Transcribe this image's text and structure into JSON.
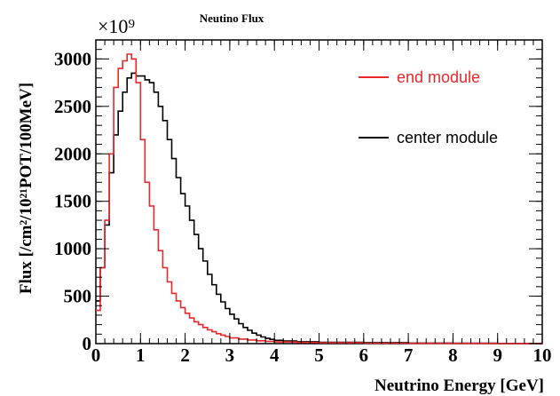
{
  "chart_data": {
    "type": "line",
    "title": "Neutino Flux",
    "xlabel": "Neutrino Energy [GeV]",
    "ylabel": "Flux [/cm²/10²¹POT/100MeV]",
    "y_scale_label": "×10⁹",
    "xlim": [
      0,
      10
    ],
    "ylim": [
      0,
      3200
    ],
    "x_ticks": [
      0,
      1,
      2,
      3,
      4,
      5,
      6,
      7,
      8,
      9,
      10
    ],
    "y_ticks": [
      0,
      500,
      1000,
      1500,
      2000,
      2500,
      3000
    ],
    "bin_width": 0.1,
    "grid": false,
    "legend": "top-right",
    "series": [
      {
        "name": "end module",
        "color": "#e8282b",
        "bin_edges": [
          0.0,
          0.1,
          0.2,
          0.3,
          0.4,
          0.5,
          0.6,
          0.7,
          0.8,
          0.9,
          1.0,
          1.1,
          1.2,
          1.3,
          1.4,
          1.5,
          1.6,
          1.7,
          1.8,
          1.9,
          2.0,
          2.1,
          2.2,
          2.3,
          2.4,
          2.5,
          2.6,
          2.7,
          2.8,
          2.9,
          3.0,
          3.2,
          3.4,
          3.6,
          3.8,
          4.0,
          4.5,
          5.0,
          6.0,
          7.0,
          8.0,
          9.0,
          10.0
        ],
        "values": [
          350,
          800,
          1300,
          2000,
          2700,
          2900,
          2980,
          3050,
          3000,
          2750,
          2150,
          1700,
          1450,
          1200,
          980,
          800,
          650,
          530,
          450,
          380,
          320,
          270,
          230,
          200,
          170,
          145,
          125,
          105,
          90,
          75,
          60,
          48,
          38,
          30,
          24,
          18,
          12,
          8,
          5,
          3,
          2,
          1
        ]
      },
      {
        "name": "center module",
        "color": "#000000",
        "bin_edges": [
          0.0,
          0.1,
          0.2,
          0.3,
          0.4,
          0.5,
          0.6,
          0.7,
          0.8,
          0.9,
          1.0,
          1.1,
          1.2,
          1.3,
          1.4,
          1.5,
          1.6,
          1.7,
          1.8,
          1.9,
          2.0,
          2.1,
          2.2,
          2.3,
          2.4,
          2.5,
          2.6,
          2.7,
          2.8,
          2.9,
          3.0,
          3.1,
          3.2,
          3.3,
          3.4,
          3.5,
          3.6,
          3.7,
          3.8,
          3.9,
          4.0,
          4.2,
          4.5,
          5.0,
          6.0,
          7.0,
          8.0,
          9.0,
          10.0
        ],
        "values": [
          450,
          800,
          1250,
          1800,
          2200,
          2450,
          2650,
          2800,
          2850,
          2820,
          2820,
          2780,
          2750,
          2650,
          2500,
          2350,
          2150,
          1950,
          1750,
          1580,
          1450,
          1300,
          1150,
          1000,
          870,
          730,
          620,
          520,
          440,
          370,
          310,
          260,
          210,
          170,
          140,
          110,
          90,
          70,
          55,
          45,
          35,
          28,
          20,
          14,
          10,
          6,
          4,
          2
        ]
      }
    ]
  }
}
